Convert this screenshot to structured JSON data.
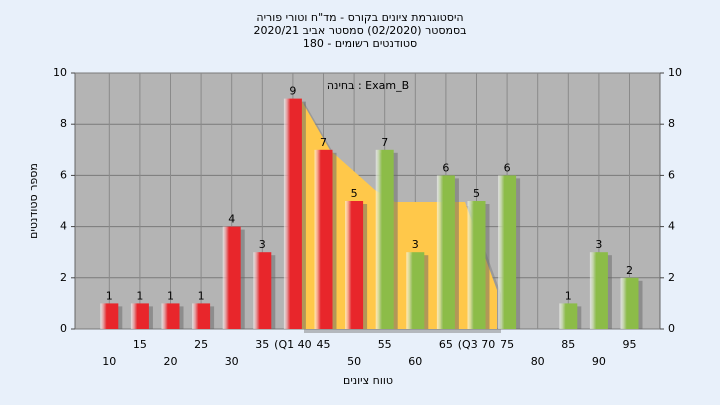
{
  "chart_data": {
    "type": "bar",
    "title": [
      "היסטוגרמת ציונים בקורס - מד\"ח וטורי פוריה",
      "בסמסטר  (02/2020)  סמסטר אביב 2020/21",
      "סטודנטים רשומים - 180"
    ],
    "annotation": "בחינה : Exam_B",
    "x_label": "טווח ציונים",
    "y_label": "מספר סטודנטים",
    "categories": [
      "10",
      "15",
      "20",
      "25",
      "30",
      "35",
      "(Q1 40",
      "45",
      "50",
      "55",
      "60",
      "65",
      "(Q3 70",
      "75",
      "80",
      "85",
      "90",
      "95"
    ],
    "values": [
      1,
      1,
      1,
      1,
      4,
      3,
      9,
      7,
      5,
      7,
      3,
      6,
      5,
      6,
      0,
      1,
      3,
      2
    ],
    "colors": [
      "#e8262b",
      "#e8262b",
      "#e8262b",
      "#e8262b",
      "#e8262b",
      "#e8262b",
      "#e8262b",
      "#e8262b",
      "#e8262b",
      "#8cbc48",
      "#8cbc48",
      "#8cbc48",
      "#8cbc48",
      "#8cbc48",
      "#8cbc48",
      "#8cbc48",
      "#8cbc48",
      "#8cbc48"
    ],
    "ylim": [
      0,
      10
    ],
    "yticks": [
      0,
      2,
      4,
      6,
      8,
      10
    ],
    "grid": true
  }
}
